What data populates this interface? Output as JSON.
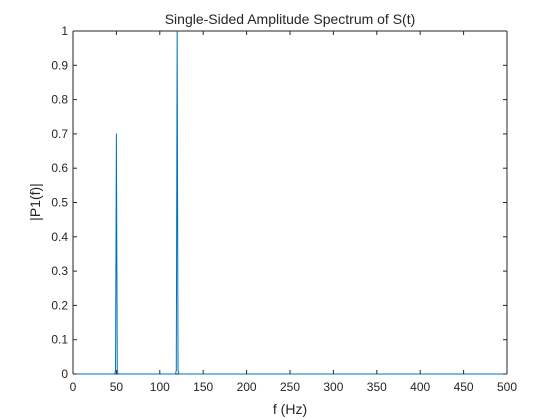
{
  "chart_data": {
    "type": "line",
    "title": "Single-Sided Amplitude Spectrum of S(t)",
    "xlabel": "f (Hz)",
    "ylabel": "|P1(f)|",
    "xlim": [
      0,
      500
    ],
    "ylim": [
      0,
      1
    ],
    "xticks": [
      "0",
      "50",
      "100",
      "150",
      "200",
      "250",
      "300",
      "350",
      "400",
      "450",
      "500"
    ],
    "yticks": [
      "0",
      "0.1",
      "0.2",
      "0.3",
      "0.4",
      "0.5",
      "0.6",
      "0.7",
      "0.8",
      "0.9",
      "1"
    ],
    "grid": false,
    "legend": "none",
    "series": [
      {
        "color": "#0072BD",
        "x": [
          0,
          48,
          49,
          50,
          51,
          52,
          118,
          119,
          120,
          121,
          122,
          500
        ],
        "y": [
          0,
          0,
          0.01,
          0.7,
          0.01,
          0,
          0,
          0.01,
          1.0,
          0.01,
          0,
          0
        ]
      }
    ]
  }
}
